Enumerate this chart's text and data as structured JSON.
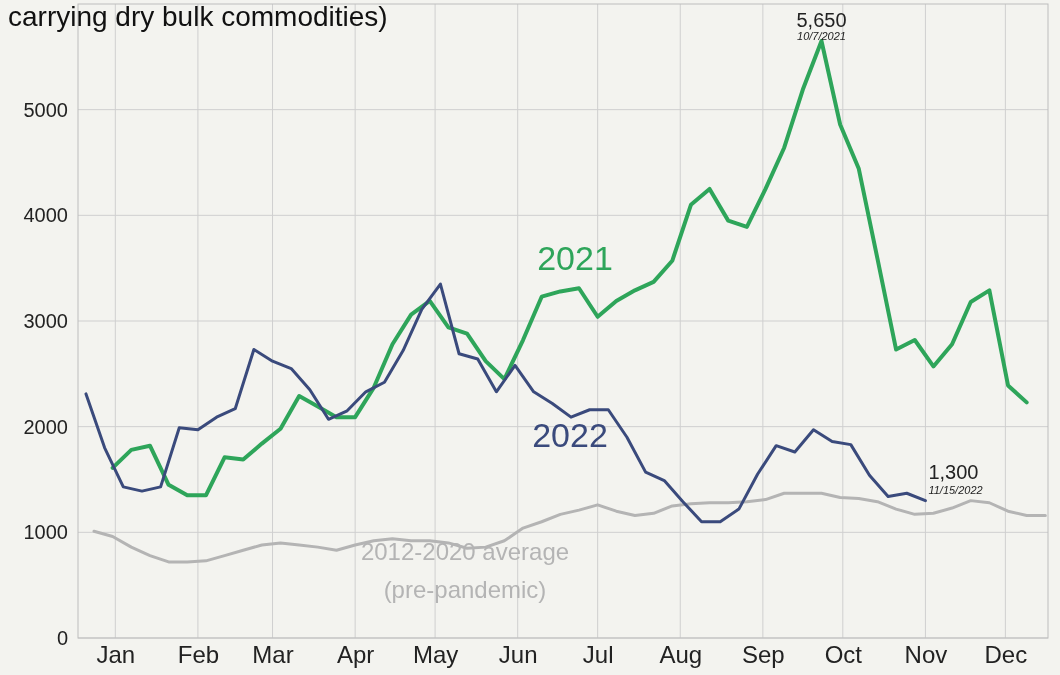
{
  "chart_data": {
    "type": "line",
    "title": "carrying dry bulk commodities)",
    "x": [
      "--01-07",
      "--01-14",
      "--01-21",
      "--01-28",
      "--02-04",
      "--02-11",
      "--02-18",
      "--02-25",
      "--03-04",
      "--03-11",
      "--03-18",
      "--03-25",
      "--04-01",
      "--04-08",
      "--04-15",
      "--04-22",
      "--04-29",
      "--05-06",
      "--05-13",
      "--05-20",
      "--05-27",
      "--06-03",
      "--06-10",
      "--06-17",
      "--06-24",
      "--07-01",
      "--07-08",
      "--07-15",
      "--07-22",
      "--07-29",
      "--08-05",
      "--08-12",
      "--08-19",
      "--08-26",
      "--09-02",
      "--09-09",
      "--09-16",
      "--09-23",
      "--09-30",
      "--10-07",
      "--10-14",
      "--10-21",
      "--10-28",
      "--11-04",
      "--11-11",
      "--11-18",
      "--11-25",
      "--12-02",
      "--12-09",
      "--12-16",
      "--12-23",
      "--12-30"
    ],
    "series": [
      {
        "name": "2012-2020 average (pre-pandemic)",
        "color": "#b4b4b4",
        "values": [
          1010,
          960,
          860,
          780,
          720,
          720,
          730,
          780,
          830,
          880,
          900,
          880,
          860,
          830,
          880,
          920,
          940,
          920,
          920,
          900,
          850,
          860,
          920,
          1040,
          1100,
          1170,
          1210,
          1260,
          1200,
          1160,
          1180,
          1250,
          1270,
          1280,
          1280,
          1290,
          1310,
          1370,
          1370,
          1370,
          1330,
          1320,
          1290,
          1220,
          1170,
          1180,
          1230,
          1300,
          1280,
          1200,
          1160,
          1160
        ]
      },
      {
        "name": "2021",
        "color": "#2ea55a",
        "x": [
          "--01-14",
          "--01-21",
          "--01-28",
          "--02-04",
          "--02-11",
          "--02-18",
          "--02-25",
          "--03-04",
          "--03-11",
          "--03-18",
          "--03-25",
          "--04-01",
          "--04-08",
          "--04-15",
          "--04-22",
          "--04-29",
          "--05-06",
          "--05-13",
          "--05-20",
          "--05-27",
          "--06-03",
          "--06-10",
          "--06-17",
          "--06-24",
          "--07-01",
          "--07-08",
          "--07-15",
          "--07-22",
          "--07-29",
          "--08-05",
          "--08-12",
          "--08-19",
          "--08-26",
          "--09-02",
          "--09-09",
          "--09-16",
          "--09-23",
          "--09-30",
          "--10-07",
          "--10-14",
          "--10-21",
          "--10-28",
          "--11-04",
          "--11-11",
          "--11-18",
          "--11-25",
          "--12-02",
          "--12-09",
          "--12-16",
          "--12-23"
        ],
        "values": [
          1610,
          1780,
          1820,
          1450,
          1350,
          1350,
          1710,
          1690,
          1840,
          1980,
          2290,
          2190,
          2090,
          2090,
          2370,
          2780,
          3060,
          3190,
          2940,
          2880,
          2620,
          2450,
          2820,
          3230,
          3280,
          3310,
          3040,
          3190,
          3290,
          3370,
          3570,
          4100,
          4250,
          3950,
          3890,
          4250,
          4640,
          5190,
          5650,
          4860,
          4440,
          3590,
          2730,
          2820,
          2570,
          2780,
          3180,
          3290,
          2390,
          2230
        ]
      },
      {
        "name": "2022",
        "color": "#3a4a7c",
        "x": [
          "--01-04",
          "--01-11",
          "--01-18",
          "--01-25",
          "--02-01",
          "--02-08",
          "--02-15",
          "--02-22",
          "--03-01",
          "--03-08",
          "--03-15",
          "--03-22",
          "--03-29",
          "--04-05",
          "--04-12",
          "--04-19",
          "--04-26",
          "--05-03",
          "--05-10",
          "--05-17",
          "--05-24",
          "--05-31",
          "--06-07",
          "--06-14",
          "--06-21",
          "--06-28",
          "--07-05",
          "--07-12",
          "--07-19",
          "--07-26",
          "--08-02",
          "--08-09",
          "--08-16",
          "--08-23",
          "--08-30",
          "--09-06",
          "--09-13",
          "--09-20",
          "--09-27",
          "--10-04",
          "--10-11",
          "--10-18",
          "--10-25",
          "--11-01",
          "--11-08",
          "--11-15"
        ],
        "values": [
          2310,
          1800,
          1430,
          1390,
          1430,
          1990,
          1970,
          2090,
          2170,
          2730,
          2620,
          2550,
          2350,
          2070,
          2150,
          2330,
          2420,
          2720,
          3110,
          3350,
          2690,
          2640,
          2330,
          2580,
          2330,
          2220,
          2090,
          2160,
          2160,
          1900,
          1570,
          1490,
          1290,
          1100,
          1100,
          1220,
          1550,
          1820,
          1760,
          1970,
          1860,
          1830,
          1540,
          1340,
          1370,
          1300
        ]
      }
    ],
    "xlim": [
      "--01-01",
      "--12-31"
    ],
    "xticks": [
      {
        "value": "--01-15",
        "label": "Jan"
      },
      {
        "value": "--02-15",
        "label": "Feb"
      },
      {
        "value": "--03-15",
        "label": "Mar"
      },
      {
        "value": "--04-15",
        "label": "Apr"
      },
      {
        "value": "--05-15",
        "label": "May"
      },
      {
        "value": "--06-15",
        "label": "Jun"
      },
      {
        "value": "--07-15",
        "label": "Jul"
      },
      {
        "value": "--08-15",
        "label": "Aug"
      },
      {
        "value": "--09-15",
        "label": "Sep"
      },
      {
        "value": "--10-15",
        "label": "Oct"
      },
      {
        "value": "--11-15",
        "label": "Nov"
      },
      {
        "value": "--12-15",
        "label": "Dec"
      }
    ],
    "ylim": [
      0,
      6000
    ],
    "yticks": [
      0,
      1000,
      2000,
      3000,
      4000,
      5000
    ],
    "grid": true,
    "annotations": [
      {
        "text": "5,650",
        "x": "--10-07",
        "y": 5650
      },
      {
        "text": "10/7/2021",
        "x": "--10-07",
        "y": 5650
      },
      {
        "text": "1,300",
        "x": "--11-15",
        "y": 1300
      },
      {
        "text": "11/15/2022",
        "x": "--11-15",
        "y": 1300
      }
    ]
  }
}
